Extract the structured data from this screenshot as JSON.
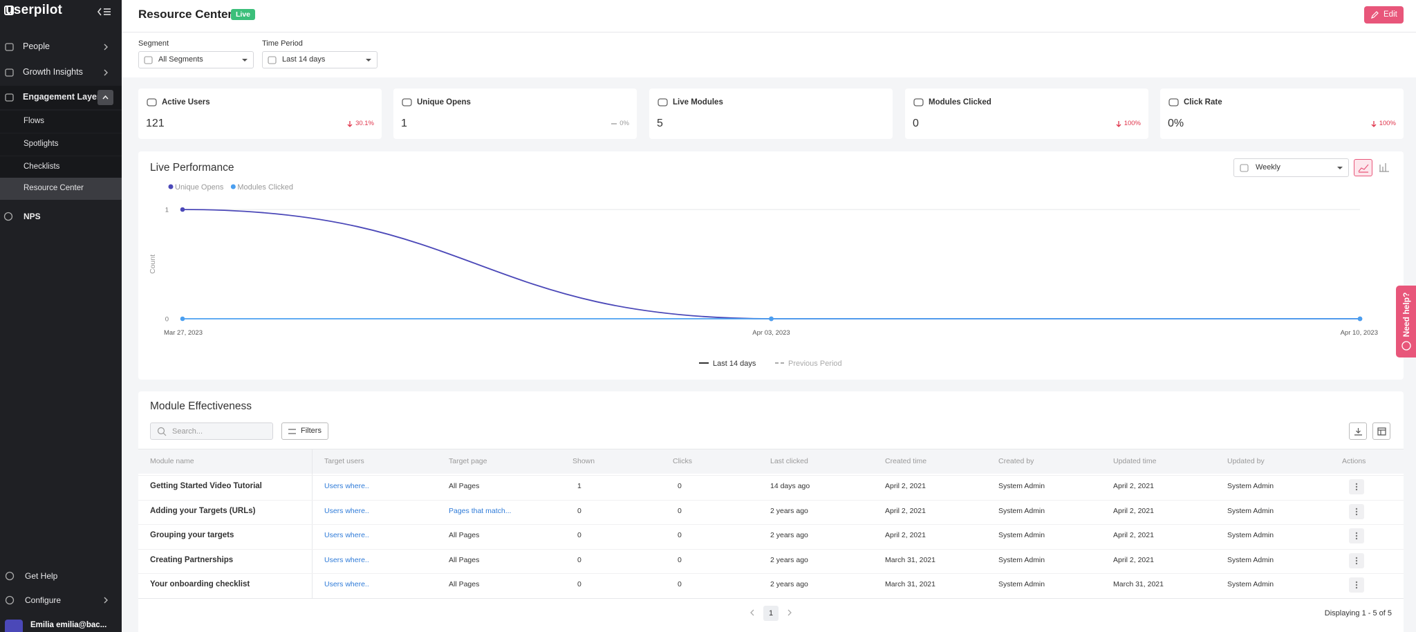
{
  "sidebar": {
    "logo": "userpilot",
    "nav": [
      "People",
      "Growth Insights",
      "Engagement Layer"
    ],
    "subnav": [
      "Flows",
      "Spotlights",
      "Checklists",
      "Resource Center"
    ],
    "nav_after": [
      "NPS"
    ],
    "footer": [
      "Get Help",
      "Configure"
    ],
    "user": "Emilia emilia@bac..."
  },
  "header": {
    "title": "Resource Center",
    "status": "Live",
    "edit": "Edit"
  },
  "filters": [
    {
      "label": "Segment",
      "value": "All Segments"
    },
    {
      "label": "Time Period",
      "value": "Last 14 days"
    }
  ],
  "kpis": [
    {
      "label": "Active Users",
      "value": "121",
      "change": "30.1%",
      "trend": "down"
    },
    {
      "label": "Unique Opens",
      "value": "1",
      "change": "0%",
      "trend": "flat"
    },
    {
      "label": "Live Modules",
      "value": "5"
    },
    {
      "label": "Modules Clicked",
      "value": "0",
      "change": "100%",
      "trend": "down"
    },
    {
      "label": "Click Rate",
      "value": "0%",
      "change": "100%",
      "trend": "down"
    }
  ],
  "chart_data": {
    "type": "line",
    "title": "Live Performance",
    "interval": "Weekly",
    "y_label": "Count",
    "categories": [
      "Mar 27, 2023",
      "Apr 03, 2023",
      "Apr 10, 2023"
    ],
    "series": [
      {
        "name": "Unique Opens",
        "color": "#4b48b8",
        "values": [
          1,
          0,
          0
        ]
      },
      {
        "name": "Modules Clicked",
        "color": "#4a9ff0",
        "values": [
          0,
          0,
          0
        ]
      }
    ],
    "ylim": [
      0,
      1
    ],
    "yticks": [
      0,
      1
    ],
    "grid": true,
    "period_legend": [
      "Last 14 days",
      "Previous Period"
    ]
  },
  "table": {
    "title": "Module Effectiveness",
    "search_placeholder": "Search...",
    "filters": "Filters",
    "columns": [
      "Module name",
      "Target users",
      "Target page",
      "Shown",
      "Clicks",
      "Last clicked",
      "Created time",
      "Created by",
      "Updated time",
      "Updated by",
      "Actions"
    ],
    "rows": [
      [
        "Getting Started Video Tutorial",
        {
          "text": "Users where..",
          "link": true
        },
        "All Pages",
        "1",
        "0",
        "14 days ago",
        "April 2, 2021",
        "System Admin",
        "April 2, 2021",
        "System Admin"
      ],
      [
        "Adding your Targets (URLs)",
        {
          "text": "Users where..",
          "link": true
        },
        {
          "text": "Pages that match...",
          "link": true
        },
        "0",
        "0",
        "2 years ago",
        "April 2, 2021",
        "System Admin",
        "April 2, 2021",
        "System Admin"
      ],
      [
        "Grouping your targets",
        {
          "text": "Users where..",
          "link": true
        },
        "All Pages",
        "0",
        "0",
        "2 years ago",
        "April 2, 2021",
        "System Admin",
        "April 2, 2021",
        "System Admin"
      ],
      [
        "Creating Partnerships",
        {
          "text": "Users where..",
          "link": true
        },
        "All Pages",
        "0",
        "0",
        "2 years ago",
        "March 31, 2021",
        "System Admin",
        "April 2, 2021",
        "System Admin"
      ],
      [
        "Your onboarding checklist",
        {
          "text": "Users where..",
          "link": true
        },
        "All Pages",
        "0",
        "0",
        "2 years ago",
        "March 31, 2021",
        "System Admin",
        "March 31, 2021",
        "System Admin"
      ]
    ],
    "pagination": {
      "page": "1",
      "summary": "Displaying 1 - 5 of 5"
    }
  },
  "help_tab": "Need help?"
}
